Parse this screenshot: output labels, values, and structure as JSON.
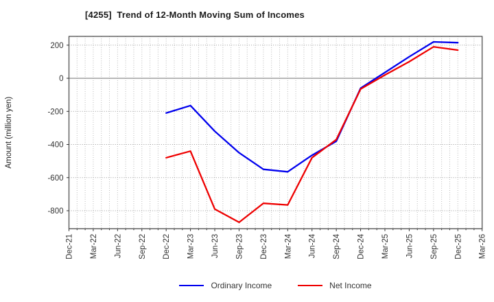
{
  "header": {
    "title": "[4255]  Trend of 12-Month Moving Sum of Incomes"
  },
  "chart_data": {
    "type": "line",
    "title": "[4255]  Trend of 12-Month Moving Sum of Incomes",
    "xlabel": "",
    "ylabel": "Amount (million yen)",
    "x_tick_labels": [
      "Dec-21",
      "Mar-22",
      "Jun-22",
      "Sep-22",
      "Dec-22",
      "Mar-23",
      "Jun-23",
      "Sep-23",
      "Dec-23",
      "Mar-24",
      "Jun-24",
      "Sep-24",
      "Dec-24",
      "Mar-25",
      "Jun-25",
      "Sep-25",
      "Dec-25",
      "Mar-26"
    ],
    "y_ticks": [
      200,
      0,
      -200,
      -400,
      -600,
      -800
    ],
    "ylim": [
      -909,
      253
    ],
    "grid": true,
    "legend_position": "bottom-center",
    "categories": [
      "Dec-22",
      "Mar-23",
      "Jun-23",
      "Sep-23",
      "Dec-23",
      "Mar-24",
      "Jun-24",
      "Sep-24",
      "Dec-24",
      "Mar-25",
      "Jun-25",
      "Sep-25",
      "Dec-25"
    ],
    "series": [
      {
        "name": "Ordinary Income",
        "color": "#0000ee",
        "x_months": [
          12,
          15,
          18,
          21,
          24,
          27,
          30,
          33,
          36,
          39,
          42,
          45,
          48
        ],
        "values": [
          -210,
          -165,
          -320,
          -450,
          -550,
          -565,
          -465,
          -380,
          -60,
          35,
          130,
          220,
          215
        ]
      },
      {
        "name": "Net Income",
        "color": "#ee0000",
        "x_months": [
          12,
          15,
          18,
          21,
          24,
          27,
          30,
          33,
          36,
          39,
          42,
          45,
          48
        ],
        "values": [
          -480,
          -440,
          -790,
          -870,
          -755,
          -765,
          -480,
          -370,
          -65,
          20,
          100,
          190,
          170
        ]
      }
    ],
    "colors": {
      "grid_h": "#999999",
      "grid_v": "#b8b8b8",
      "zero_line": "#808080",
      "frame": "#4d4d4d",
      "tick_text": "#333333"
    }
  }
}
